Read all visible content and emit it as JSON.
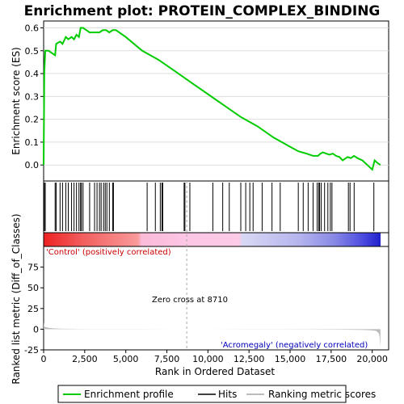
{
  "title": "Enrichment plot: PROTEIN_COMPLEX_BINDING",
  "colors": {
    "profile": "#00cc00",
    "hits": "#000000",
    "metric": "#bbbbbb",
    "positive_label": "#cc0000",
    "negative_label": "#0000bb",
    "zero_line": "#aaaaaa"
  },
  "chart_data": [
    {
      "type": "line",
      "name": "enrichment-profile",
      "ylabel": "Enrichment score (ES)",
      "xlim": [
        0,
        21000
      ],
      "ylim": [
        -0.07,
        0.63
      ],
      "y_ticks": [
        0.0,
        0.1,
        0.2,
        0.3,
        0.4,
        0.5,
        0.6
      ],
      "y_tick_labels": [
        "0.0",
        "0.1",
        "0.2",
        "0.3",
        "0.4",
        "0.5",
        "0.6"
      ],
      "grid": true,
      "series": [
        {
          "name": "Enrichment profile",
          "x": [
            0,
            40,
            100,
            300,
            700,
            760,
            1000,
            1150,
            1350,
            1500,
            1700,
            1850,
            2000,
            2150,
            2250,
            2400,
            2600,
            2800,
            3000,
            3200,
            3400,
            3600,
            3800,
            4000,
            4200,
            4400,
            5000,
            6000,
            7000,
            8000,
            9000,
            10000,
            11000,
            12000,
            13000,
            14000,
            15000,
            15500,
            16000,
            16400,
            16700,
            16850,
            17000,
            17200,
            17400,
            17600,
            17800,
            18000,
            18200,
            18500,
            18700,
            18900,
            19100,
            19400,
            19700,
            20000,
            20150,
            20300,
            20500
          ],
          "y": [
            0.0,
            0.4,
            0.5,
            0.5,
            0.48,
            0.53,
            0.54,
            0.53,
            0.56,
            0.55,
            0.56,
            0.55,
            0.57,
            0.56,
            0.6,
            0.6,
            0.59,
            0.58,
            0.58,
            0.58,
            0.58,
            0.59,
            0.59,
            0.58,
            0.59,
            0.59,
            0.56,
            0.5,
            0.46,
            0.41,
            0.36,
            0.31,
            0.26,
            0.21,
            0.17,
            0.12,
            0.08,
            0.06,
            0.05,
            0.04,
            0.04,
            0.05,
            0.055,
            0.05,
            0.045,
            0.05,
            0.04,
            0.035,
            0.02,
            0.035,
            0.03,
            0.04,
            0.03,
            0.02,
            0.0,
            -0.02,
            0.02,
            0.01,
            0.0
          ]
        }
      ]
    },
    {
      "type": "scatter",
      "name": "hits",
      "hit_positions": [
        40,
        100,
        700,
        760,
        1000,
        1150,
        1350,
        1500,
        1700,
        1850,
        2000,
        2150,
        2250,
        2300,
        2400,
        2800,
        3100,
        3250,
        3400,
        3500,
        3650,
        3750,
        3850,
        4000,
        4200,
        4250,
        6300,
        6800,
        7100,
        7200,
        7250,
        8550,
        8600,
        8900,
        10300,
        10900,
        11300,
        12000,
        12300,
        12550,
        12750,
        13300,
        13900,
        14400,
        15500,
        15800,
        16100,
        16400,
        16650,
        16750,
        16800,
        16900,
        17100,
        17300,
        17450,
        17550,
        18550,
        18650,
        18900,
        20100
      ]
    },
    {
      "type": "area",
      "name": "ranked-list-metric",
      "ylabel": "Ranked list metric (Diff_of_Classes)",
      "xlabel": "Rank in Ordered Dataset",
      "xlim": [
        0,
        21000
      ],
      "ylim": [
        -25,
        100
      ],
      "x_ticks": [
        0,
        2500,
        5000,
        7500,
        10000,
        12500,
        15000,
        17500,
        20000
      ],
      "x_tick_labels": [
        "0",
        "2,500",
        "5,000",
        "7,500",
        "10,000",
        "12,500",
        "15,000",
        "17,500",
        "20,000"
      ],
      "y_ticks": [
        -25,
        0,
        25,
        50,
        75
      ],
      "y_tick_labels": [
        "-25",
        "0",
        "25",
        "50",
        "75"
      ],
      "x": [
        0,
        20,
        60,
        150,
        300,
        600,
        1000,
        2000,
        3000,
        4500,
        6000,
        8000,
        8710,
        10000,
        12000,
        14000,
        16000,
        18000,
        19500,
        20000,
        20200,
        20300,
        20400,
        20450,
        20500
      ],
      "y": [
        9,
        5,
        3,
        2.2,
        1.6,
        1.0,
        0.6,
        0.3,
        0.2,
        0.1,
        0.05,
        0.01,
        0,
        -0.02,
        -0.05,
        -0.1,
        -0.2,
        -0.5,
        -1.0,
        -1.5,
        -2.0,
        -3.0,
        -5.0,
        -9.0,
        -21
      ],
      "zero_cross": 8710,
      "annotations": {
        "positive": "'Control' (positively correlated)",
        "negative": "'Acromegaly' (negatively correlated)",
        "zero_cross": "Zero cross at 8710"
      }
    }
  ],
  "legend": {
    "items": [
      {
        "label": "Enrichment profile",
        "style": "profile"
      },
      {
        "label": "Hits",
        "style": "hits"
      },
      {
        "label": "Ranking metric scores",
        "style": "metric"
      }
    ]
  }
}
